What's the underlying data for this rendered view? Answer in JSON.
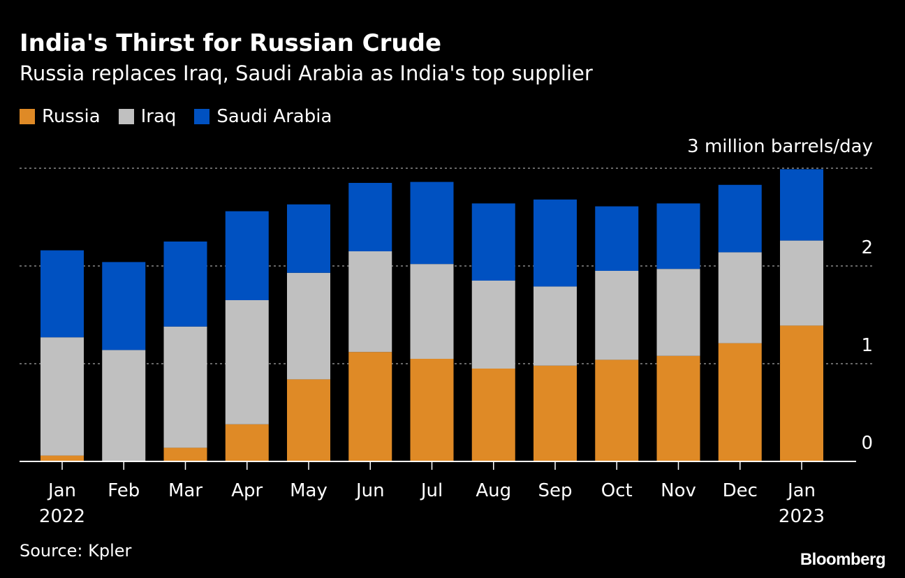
{
  "title": "India's Thirst for Russian Crude",
  "subtitle": "Russia replaces Iraq, Saudi Arabia as India's top supplier",
  "source": "Source: Kpler",
  "logo": "Bloomberg",
  "chart_data": {
    "type": "bar",
    "stacked": true,
    "title": "India's Thirst for Russian Crude",
    "subtitle": "Russia replaces Iraq, Saudi Arabia as India's top supplier",
    "unit_label": "3 million barrels/day",
    "categories": [
      "Jan|2022",
      "Feb",
      "Mar",
      "Apr",
      "May",
      "Jun",
      "Jul",
      "Aug",
      "Sep",
      "Oct",
      "Nov",
      "Dec",
      "Jan|2023"
    ],
    "yticks": [
      "0",
      "1",
      "2",
      "3 million barrels/day"
    ],
    "ylim": [
      0,
      3
    ],
    "grid": true,
    "legend_placement": "top-left",
    "series": [
      {
        "name": "Russia",
        "color": "#DF8A26",
        "values": [
          0.06,
          0,
          0.14,
          0.38,
          0.84,
          1.12,
          1.05,
          0.95,
          0.98,
          1.04,
          1.08,
          1.21,
          1.39
        ]
      },
      {
        "name": "Iraq",
        "color": "#C0C0C0",
        "values": [
          1.21,
          1.14,
          1.24,
          1.27,
          1.09,
          1.03,
          0.97,
          0.9,
          0.81,
          0.91,
          0.89,
          0.93,
          0.87
        ]
      },
      {
        "name": "Saudi Arabia",
        "color": "#0051C1",
        "values": [
          0.89,
          0.9,
          0.87,
          0.91,
          0.7,
          0.7,
          0.84,
          0.79,
          0.89,
          0.66,
          0.67,
          0.69,
          0.73
        ]
      }
    ]
  }
}
